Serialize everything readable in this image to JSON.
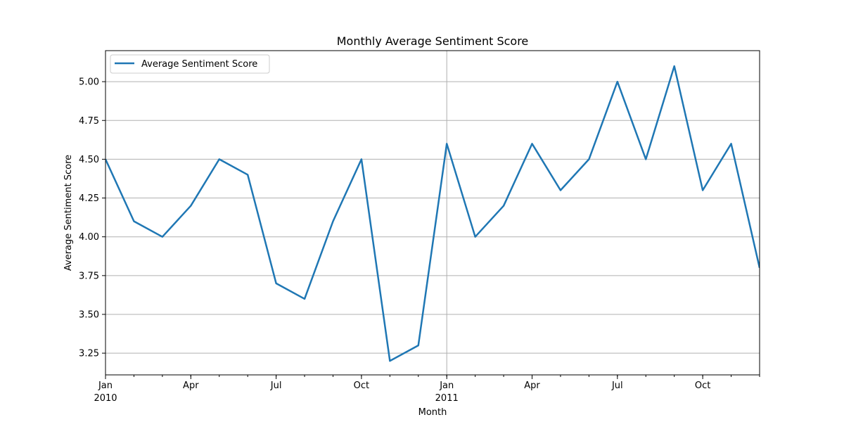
{
  "chart_data": {
    "type": "line",
    "title": "Monthly Average Sentiment Score",
    "xlabel": "Month",
    "ylabel": "Average Sentiment Score",
    "x": [
      "2010-01",
      "2010-02",
      "2010-03",
      "2010-04",
      "2010-05",
      "2010-06",
      "2010-07",
      "2010-08",
      "2010-09",
      "2010-10",
      "2010-11",
      "2010-12",
      "2011-01",
      "2011-02",
      "2011-03",
      "2011-04",
      "2011-05",
      "2011-06",
      "2011-07",
      "2011-08",
      "2011-09",
      "2011-10",
      "2011-11",
      "2011-12"
    ],
    "series": [
      {
        "name": "Average Sentiment Score",
        "color": "#1f77b4",
        "values": [
          4.5,
          4.1,
          4.0,
          4.2,
          4.5,
          4.4,
          3.7,
          3.6,
          4.1,
          4.5,
          3.2,
          3.3,
          4.6,
          4.0,
          4.2,
          4.6,
          4.3,
          4.5,
          5.0,
          4.5,
          5.1,
          4.3,
          4.6,
          3.8
        ]
      }
    ],
    "ylim": [
      3.11,
      5.2
    ],
    "y_ticks": [
      "3.25",
      "3.50",
      "3.75",
      "4.00",
      "4.25",
      "4.50",
      "4.75",
      "5.00"
    ],
    "x_ticks": [
      {
        "month": "2010-01",
        "label": "Jan",
        "sublabel": "2010"
      },
      {
        "month": "2010-04",
        "label": "Apr",
        "sublabel": ""
      },
      {
        "month": "2010-07",
        "label": "Jul",
        "sublabel": ""
      },
      {
        "month": "2010-10",
        "label": "Oct",
        "sublabel": ""
      },
      {
        "month": "2011-01",
        "label": "Jan",
        "sublabel": "2011"
      },
      {
        "month": "2011-04",
        "label": "Apr",
        "sublabel": ""
      },
      {
        "month": "2011-07",
        "label": "Jul",
        "sublabel": ""
      },
      {
        "month": "2011-10",
        "label": "Oct",
        "sublabel": ""
      }
    ],
    "grid": true,
    "legend_position": "top-left"
  }
}
